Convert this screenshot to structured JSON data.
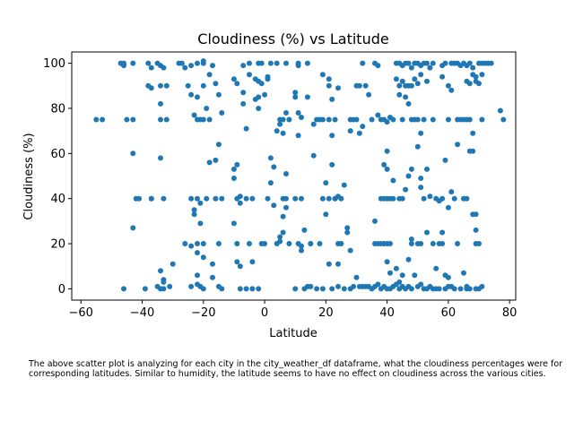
{
  "caption": "The above scatter plot is analyzing for each city in the city_weather_df dataframe, what the cloudiness percentages were for corresponding latitudes. Similar to humidity, the latitude seems to have no effect on cloudiness across the various cities.",
  "chart_data": {
    "type": "scatter",
    "title": "Cloudiness (%) vs Latitude",
    "xlabel": "Latitude",
    "ylabel": "Cloudiness (%)",
    "xlim": [
      -63,
      82
    ],
    "ylim": [
      -5,
      105
    ],
    "xticks": [
      -60,
      -40,
      -20,
      0,
      20,
      40,
      60,
      80
    ],
    "yticks": [
      0,
      20,
      40,
      60,
      80,
      100
    ],
    "grid": false,
    "point_color": "#1f77b4",
    "points": [
      [
        -55,
        75
      ],
      [
        -53,
        75
      ],
      [
        -47,
        100
      ],
      [
        -46,
        100
      ],
      [
        -46,
        99
      ],
      [
        -45,
        75
      ],
      [
        -46,
        0
      ],
      [
        -43,
        100
      ],
      [
        -43,
        75
      ],
      [
        -43,
        60
      ],
      [
        -43,
        27
      ],
      [
        -42,
        40
      ],
      [
        -41,
        40
      ],
      [
        -38,
        100
      ],
      [
        -38,
        90
      ],
      [
        -37,
        89
      ],
      [
        -37,
        98
      ],
      [
        -37,
        40
      ],
      [
        -37,
        40
      ],
      [
        -39,
        0
      ],
      [
        -35,
        100
      ],
      [
        -34,
        99
      ],
      [
        -34,
        90
      ],
      [
        -33,
        98
      ],
      [
        -32,
        90
      ],
      [
        -34,
        82
      ],
      [
        -34,
        75
      ],
      [
        -32,
        75
      ],
      [
        -34,
        58
      ],
      [
        -33,
        40
      ],
      [
        -34,
        8
      ],
      [
        -33,
        4
      ],
      [
        -35,
        1
      ],
      [
        -34,
        0
      ],
      [
        -33,
        0
      ],
      [
        -31,
        1
      ],
      [
        -30,
        11
      ],
      [
        -33,
        3
      ],
      [
        -28,
        100
      ],
      [
        -27,
        100
      ],
      [
        -26,
        98
      ],
      [
        -25,
        90
      ],
      [
        -24,
        86
      ],
      [
        -22,
        85
      ],
      [
        -23,
        77
      ],
      [
        -22,
        75
      ],
      [
        -21,
        75
      ],
      [
        -20,
        75
      ],
      [
        -20,
        90
      ],
      [
        -19,
        80
      ],
      [
        -18,
        75
      ],
      [
        -18,
        95
      ],
      [
        -16,
        91
      ],
      [
        -15,
        86
      ],
      [
        -14,
        78
      ],
      [
        -15,
        64
      ],
      [
        -16,
        57
      ],
      [
        -18,
        56
      ],
      [
        -14,
        40
      ],
      [
        -16,
        40
      ],
      [
        -24,
        40
      ],
      [
        -22,
        40
      ],
      [
        -21,
        38
      ],
      [
        -23,
        35
      ],
      [
        -23,
        33
      ],
      [
        -21,
        29
      ],
      [
        -19,
        40
      ],
      [
        -20,
        20
      ],
      [
        -22,
        20
      ],
      [
        -24,
        19
      ],
      [
        -26,
        20
      ],
      [
        -22,
        16
      ],
      [
        -20,
        14
      ],
      [
        -24,
        1
      ],
      [
        -22,
        2
      ],
      [
        -22,
        6
      ],
      [
        -21,
        1
      ],
      [
        -20,
        0
      ],
      [
        -17,
        5
      ],
      [
        -15,
        1
      ],
      [
        -14,
        0
      ],
      [
        -15,
        20
      ],
      [
        -17,
        11
      ],
      [
        -22,
        100
      ],
      [
        -20,
        100
      ],
      [
        -24,
        99
      ],
      [
        -20,
        101
      ],
      [
        -17,
        99
      ],
      [
        -10,
        93
      ],
      [
        -9,
        91
      ],
      [
        -9,
        55
      ],
      [
        -10,
        53
      ],
      [
        -10,
        49
      ],
      [
        -8,
        41
      ],
      [
        -9,
        40
      ],
      [
        -8,
        38
      ],
      [
        -10,
        29
      ],
      [
        -9,
        20
      ],
      [
        -5,
        20
      ],
      [
        -6,
        40
      ],
      [
        -4,
        40
      ],
      [
        -9,
        12
      ],
      [
        -8,
        10
      ],
      [
        -8,
        0
      ],
      [
        -6,
        0
      ],
      [
        -4,
        0
      ],
      [
        -4,
        12
      ],
      [
        -2,
        0
      ],
      [
        -5,
        100
      ],
      [
        -5,
        95
      ],
      [
        -7,
        99
      ],
      [
        -3,
        93
      ],
      [
        -2,
        92
      ],
      [
        -1,
        91
      ],
      [
        -2,
        85
      ],
      [
        -3,
        84
      ],
      [
        -2,
        80
      ],
      [
        -7,
        87
      ],
      [
        -7,
        82
      ],
      [
        -6,
        71
      ],
      [
        -2,
        100
      ],
      [
        -1,
        100
      ],
      [
        0,
        86
      ],
      [
        1,
        94
      ],
      [
        1,
        93
      ],
      [
        2,
        100
      ],
      [
        4,
        100
      ],
      [
        0,
        20
      ],
      [
        -1,
        20
      ],
      [
        1,
        40
      ],
      [
        2,
        58
      ],
      [
        3,
        54
      ],
      [
        2,
        47
      ],
      [
        3,
        37
      ],
      [
        4,
        20
      ],
      [
        5,
        21
      ],
      [
        5,
        23
      ],
      [
        6,
        25
      ],
      [
        6,
        32
      ],
      [
        6,
        40
      ],
      [
        7,
        40
      ],
      [
        7,
        36
      ],
      [
        8,
        20
      ],
      [
        4,
        70
      ],
      [
        5,
        75
      ],
      [
        5,
        73
      ],
      [
        6,
        75
      ],
      [
        7,
        78
      ],
      [
        7,
        51
      ],
      [
        8,
        75
      ],
      [
        6,
        69
      ],
      [
        10,
        87
      ],
      [
        10,
        85
      ],
      [
        7,
        100
      ],
      [
        11,
        100
      ],
      [
        11,
        99
      ],
      [
        11,
        78
      ],
      [
        12,
        76
      ],
      [
        10,
        40
      ],
      [
        12,
        40
      ],
      [
        11,
        20
      ],
      [
        12,
        19
      ],
      [
        12,
        17
      ],
      [
        10,
        0
      ],
      [
        13,
        0
      ],
      [
        14,
        1
      ],
      [
        15,
        1
      ],
      [
        15,
        20
      ],
      [
        13,
        26
      ],
      [
        16,
        59
      ],
      [
        17,
        75
      ],
      [
        18,
        75
      ],
      [
        19,
        95
      ],
      [
        21,
        93
      ],
      [
        21,
        90
      ],
      [
        22,
        84
      ],
      [
        19,
        75
      ],
      [
        21,
        75
      ],
      [
        22,
        68
      ],
      [
        23,
        75
      ],
      [
        14,
        85
      ],
      [
        16,
        73
      ],
      [
        11,
        68
      ],
      [
        14,
        100
      ],
      [
        15,
        20
      ],
      [
        18,
        20
      ],
      [
        19,
        40
      ],
      [
        20,
        33
      ],
      [
        20,
        47
      ],
      [
        21,
        40
      ],
      [
        23,
        40
      ],
      [
        22,
        55
      ],
      [
        23,
        40
      ],
      [
        24,
        41
      ],
      [
        25,
        40
      ],
      [
        26,
        46
      ],
      [
        27,
        27
      ],
      [
        27,
        25
      ],
      [
        24,
        20
      ],
      [
        25,
        20
      ],
      [
        28,
        17
      ],
      [
        21,
        11
      ],
      [
        24,
        11
      ],
      [
        22,
        0
      ],
      [
        19,
        0
      ],
      [
        17,
        0
      ],
      [
        24,
        1
      ],
      [
        26,
        0
      ],
      [
        28,
        0
      ],
      [
        29,
        1
      ],
      [
        24,
        89
      ],
      [
        28,
        75
      ],
      [
        29,
        75
      ],
      [
        30,
        90
      ],
      [
        31,
        90
      ],
      [
        32,
        100
      ],
      [
        33,
        90
      ],
      [
        34,
        86
      ],
      [
        36,
        100
      ],
      [
        37,
        99
      ],
      [
        35,
        75
      ],
      [
        37,
        77
      ],
      [
        38,
        75
      ],
      [
        39,
        75
      ],
      [
        40,
        74
      ],
      [
        41,
        76
      ],
      [
        42,
        75
      ],
      [
        36,
        20
      ],
      [
        37,
        20
      ],
      [
        38,
        20
      ],
      [
        39,
        20
      ],
      [
        40,
        20
      ],
      [
        41,
        20
      ],
      [
        36,
        30
      ],
      [
        38,
        40
      ],
      [
        39,
        40
      ],
      [
        40,
        40
      ],
      [
        41,
        40
      ],
      [
        42,
        40
      ],
      [
        39,
        55
      ],
      [
        40,
        53
      ],
      [
        40,
        61
      ],
      [
        42,
        48
      ],
      [
        30,
        75
      ],
      [
        31,
        69
      ],
      [
        32,
        72
      ],
      [
        28,
        70
      ],
      [
        30,
        5
      ],
      [
        31,
        1
      ],
      [
        32,
        1
      ],
      [
        33,
        1
      ],
      [
        34,
        1
      ],
      [
        35,
        0
      ],
      [
        36,
        1
      ],
      [
        37,
        2
      ],
      [
        38,
        0
      ],
      [
        39,
        1
      ],
      [
        40,
        0
      ],
      [
        41,
        0
      ],
      [
        42,
        1
      ],
      [
        43,
        9
      ],
      [
        43,
        2
      ],
      [
        40,
        12
      ],
      [
        41,
        7
      ],
      [
        44,
        0
      ],
      [
        45,
        1
      ],
      [
        46,
        0
      ],
      [
        47,
        1
      ],
      [
        48,
        0
      ],
      [
        49,
        6
      ],
      [
        50,
        1
      ],
      [
        51,
        2
      ],
      [
        52,
        0
      ],
      [
        53,
        0
      ],
      [
        54,
        1
      ],
      [
        55,
        0
      ],
      [
        56,
        9
      ],
      [
        57,
        0
      ],
      [
        43,
        100
      ],
      [
        44,
        100
      ],
      [
        45,
        99
      ],
      [
        46,
        100
      ],
      [
        47,
        100
      ],
      [
        48,
        98
      ],
      [
        49,
        100
      ],
      [
        50,
        100
      ],
      [
        51,
        99
      ],
      [
        52,
        100
      ],
      [
        53,
        100
      ],
      [
        54,
        98
      ],
      [
        55,
        100
      ],
      [
        43,
        93
      ],
      [
        44,
        90
      ],
      [
        45,
        92
      ],
      [
        46,
        90
      ],
      [
        47,
        90
      ],
      [
        48,
        90
      ],
      [
        49,
        93
      ],
      [
        50,
        91
      ],
      [
        51,
        95
      ],
      [
        53,
        92
      ],
      [
        44,
        86
      ],
      [
        46,
        85
      ],
      [
        47,
        82
      ],
      [
        45,
        75
      ],
      [
        48,
        75
      ],
      [
        49,
        75
      ],
      [
        50,
        75
      ],
      [
        51,
        69
      ],
      [
        52,
        75
      ],
      [
        55,
        75
      ],
      [
        44,
        40
      ],
      [
        45,
        40
      ],
      [
        46,
        44
      ],
      [
        47,
        50
      ],
      [
        48,
        53
      ],
      [
        50,
        63
      ],
      [
        51,
        49
      ],
      [
        51,
        45
      ],
      [
        52,
        40
      ],
      [
        53,
        53
      ],
      [
        54,
        41
      ],
      [
        55,
        20
      ],
      [
        53,
        25
      ],
      [
        51,
        20
      ],
      [
        50,
        20
      ],
      [
        48,
        20
      ],
      [
        47,
        13
      ],
      [
        45,
        6
      ],
      [
        44,
        3
      ],
      [
        56,
        0
      ],
      [
        57,
        20
      ],
      [
        58,
        20
      ],
      [
        58,
        40
      ],
      [
        59,
        57
      ],
      [
        60,
        36
      ],
      [
        61,
        43
      ],
      [
        62,
        40
      ],
      [
        63,
        64
      ],
      [
        64,
        75
      ],
      [
        65,
        40
      ],
      [
        66,
        40
      ],
      [
        67,
        61
      ],
      [
        68,
        61
      ],
      [
        68,
        33
      ],
      [
        69,
        33
      ],
      [
        70,
        20
      ],
      [
        69,
        26
      ],
      [
        70,
        0
      ],
      [
        71,
        1
      ],
      [
        58,
        94
      ],
      [
        58,
        99
      ],
      [
        59,
        100
      ],
      [
        60,
        90
      ],
      [
        61,
        88
      ],
      [
        61,
        100
      ],
      [
        62,
        100
      ],
      [
        63,
        100
      ],
      [
        64,
        99
      ],
      [
        65,
        100
      ],
      [
        66,
        99
      ],
      [
        66,
        92
      ],
      [
        67,
        91
      ],
      [
        67,
        100
      ],
      [
        68,
        98
      ],
      [
        68,
        95
      ],
      [
        69,
        94
      ],
      [
        69,
        92
      ],
      [
        70,
        100
      ],
      [
        70,
        91
      ],
      [
        71,
        100
      ],
      [
        71,
        95
      ],
      [
        72,
        100
      ],
      [
        73,
        100
      ],
      [
        74,
        100
      ],
      [
        60,
        75
      ],
      [
        63,
        75
      ],
      [
        65,
        75
      ],
      [
        66,
        75
      ],
      [
        67,
        75
      ],
      [
        68,
        69
      ],
      [
        71,
        75
      ],
      [
        77,
        79
      ],
      [
        78,
        75
      ],
      [
        58,
        25
      ],
      [
        59,
        6
      ],
      [
        60,
        5
      ],
      [
        61,
        1
      ],
      [
        63,
        20
      ],
      [
        64,
        0
      ],
      [
        65,
        7
      ],
      [
        66,
        1
      ],
      [
        66,
        0
      ],
      [
        67,
        0
      ],
      [
        69,
        0
      ],
      [
        69,
        20
      ],
      [
        59,
        0
      ],
      [
        60,
        1
      ],
      [
        56,
        40
      ],
      [
        57,
        39
      ],
      [
        62,
        0
      ],
      [
        48,
        22
      ]
    ]
  }
}
